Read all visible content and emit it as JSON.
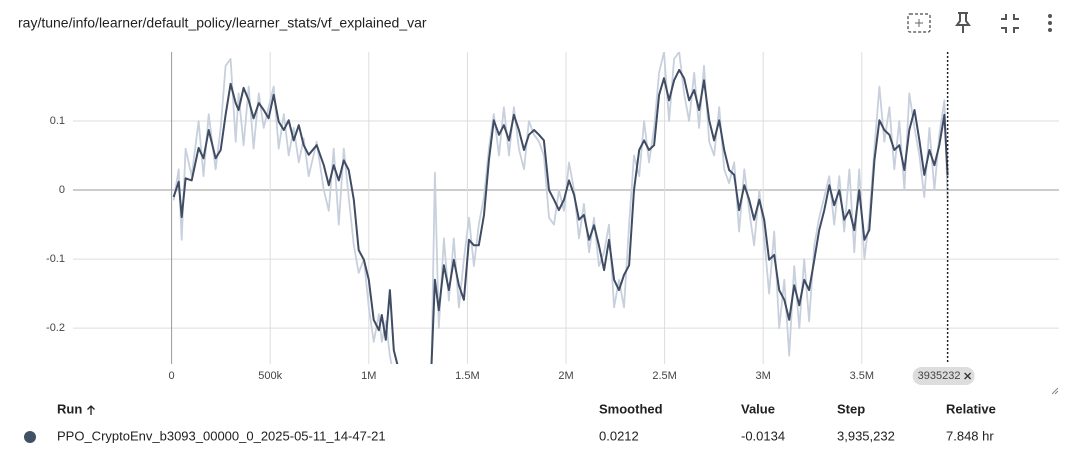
{
  "header": {
    "title": "ray/tune/info/learner/default_policy/learner_stats/vf_explained_var"
  },
  "chart_data": {
    "type": "line",
    "x": [
      10000,
      36000,
      51000,
      71000,
      102000,
      137000,
      162000,
      188000,
      223000,
      249000,
      274000,
      299000,
      325000,
      340000,
      365000,
      391000,
      416000,
      442000,
      467000,
      492000,
      518000,
      543000,
      569000,
      594000,
      619000,
      645000,
      670000,
      695000,
      736000,
      772000,
      797000,
      822000,
      848000,
      873000,
      898000,
      924000,
      949000,
      975000,
      1000000,
      1025000,
      1051000,
      1066000,
      1086000,
      1107000,
      1127000,
      1152000,
      1315000,
      1335000,
      1355000,
      1381000,
      1406000,
      1431000,
      1457000,
      1482000,
      1508000,
      1533000,
      1558000,
      1584000,
      1609000,
      1634000,
      1660000,
      1685000,
      1711000,
      1736000,
      1761000,
      1787000,
      1812000,
      1838000,
      1863000,
      1888000,
      1914000,
      1939000,
      1964000,
      1990000,
      2015000,
      2041000,
      2066000,
      2091000,
      2117000,
      2142000,
      2167000,
      2193000,
      2218000,
      2244000,
      2269000,
      2294000,
      2320000,
      2345000,
      2371000,
      2396000,
      2421000,
      2447000,
      2472000,
      2497000,
      2523000,
      2548000,
      2574000,
      2599000,
      2624000,
      2650000,
      2675000,
      2700000,
      2726000,
      2751000,
      2777000,
      2802000,
      2827000,
      2853000,
      2878000,
      2904000,
      2929000,
      2954000,
      2980000,
      3005000,
      3030000,
      3056000,
      3081000,
      3107000,
      3132000,
      3157000,
      3183000,
      3208000,
      3233000,
      3259000,
      3284000,
      3310000,
      3335000,
      3360000,
      3386000,
      3411000,
      3437000,
      3462000,
      3487000,
      3513000,
      3538000,
      3564000,
      3589000,
      3614000,
      3640000,
      3665000,
      3690000,
      3716000,
      3741000,
      3767000,
      3792000,
      3817000,
      3843000,
      3868000,
      3893000,
      3919000,
      3935232
    ],
    "series": [
      {
        "color": "#c8d0dd",
        "values": [
          -0.015,
          0.03,
          -0.072,
          0.06,
          0.02,
          0.1,
          0.02,
          0.11,
          0.03,
          0.09,
          0.18,
          0.19,
          0.07,
          0.14,
          0.065,
          0.15,
          0.06,
          0.14,
          0.09,
          0.12,
          0.15,
          0.06,
          0.11,
          0.05,
          0.09,
          0.04,
          0.075,
          0.02,
          0.07,
          0.0,
          -0.03,
          0.06,
          -0.05,
          0.06,
          -0.01,
          -0.08,
          -0.12,
          -0.1,
          -0.17,
          -0.22,
          -0.18,
          -0.22,
          -0.19,
          -0.24,
          -0.27,
          -0.3,
          -0.3,
          0.025,
          -0.2,
          -0.07,
          -0.16,
          -0.07,
          -0.17,
          -0.1,
          -0.04,
          -0.11,
          -0.05,
          -0.01,
          0.06,
          0.11,
          0.05,
          0.12,
          0.05,
          0.12,
          0.06,
          0.03,
          0.1,
          0.08,
          0.07,
          0.05,
          -0.04,
          -0.05,
          0.0,
          -0.03,
          0.04,
          0.0,
          -0.07,
          -0.02,
          -0.09,
          -0.04,
          -0.11,
          -0.09,
          -0.05,
          -0.17,
          -0.13,
          -0.17,
          -0.05,
          0.05,
          0.02,
          0.1,
          0.04,
          0.09,
          0.17,
          0.2,
          0.1,
          0.19,
          0.2,
          0.14,
          0.1,
          0.17,
          0.09,
          0.18,
          0.07,
          0.05,
          0.12,
          0.03,
          0.01,
          0.04,
          -0.06,
          0.03,
          -0.03,
          -0.08,
          0.0,
          -0.07,
          -0.15,
          -0.06,
          -0.2,
          -0.13,
          -0.24,
          -0.11,
          -0.2,
          -0.1,
          -0.19,
          -0.08,
          -0.04,
          -0.01,
          0.02,
          -0.05,
          0.02,
          -0.06,
          0.03,
          -0.09,
          0.03,
          -0.1,
          -0.04,
          0.06,
          0.15,
          0.07,
          0.12,
          0.03,
          0.1,
          0.0,
          0.14,
          0.09,
          0.05,
          -0.01,
          0.09,
          0.0,
          0.08,
          0.13,
          -0.0134
        ]
      },
      {
        "color": "#3f4c63",
        "values": [
          -0.01,
          0.012,
          -0.039,
          0.017,
          0.014,
          0.061,
          0.046,
          0.087,
          0.046,
          0.058,
          0.109,
          0.154,
          0.126,
          0.116,
          0.148,
          0.13,
          0.104,
          0.126,
          0.116,
          0.104,
          0.138,
          0.099,
          0.087,
          0.101,
          0.072,
          0.094,
          0.065,
          0.051,
          0.065,
          0.036,
          0.007,
          0.036,
          0.014,
          0.043,
          0.029,
          -0.014,
          -0.087,
          -0.101,
          -0.13,
          -0.188,
          -0.203,
          -0.181,
          -0.217,
          -0.145,
          -0.232,
          -0.261,
          -0.275,
          -0.13,
          -0.174,
          -0.109,
          -0.145,
          -0.101,
          -0.138,
          -0.159,
          -0.072,
          -0.08,
          -0.08,
          -0.036,
          0.043,
          0.101,
          0.08,
          0.094,
          0.072,
          0.109,
          0.087,
          0.058,
          0.08,
          0.087,
          0.08,
          0.072,
          0.0,
          -0.014,
          -0.029,
          -0.014,
          0.014,
          -0.007,
          -0.043,
          -0.036,
          -0.072,
          -0.051,
          -0.08,
          -0.116,
          -0.072,
          -0.13,
          -0.145,
          -0.123,
          -0.109,
          0.0,
          0.058,
          0.072,
          0.058,
          0.065,
          0.138,
          0.162,
          0.13,
          0.159,
          0.174,
          0.162,
          0.13,
          0.145,
          0.116,
          0.159,
          0.101,
          0.072,
          0.101,
          0.058,
          0.029,
          0.022,
          -0.029,
          0.007,
          -0.014,
          -0.043,
          -0.014,
          -0.043,
          -0.101,
          -0.094,
          -0.145,
          -0.159,
          -0.188,
          -0.138,
          -0.167,
          -0.13,
          -0.145,
          -0.101,
          -0.058,
          -0.029,
          0.007,
          -0.022,
          0.0,
          -0.043,
          -0.029,
          -0.058,
          0.0,
          -0.072,
          -0.058,
          0.043,
          0.101,
          0.087,
          0.08,
          0.058,
          0.065,
          0.029,
          0.087,
          0.116,
          0.072,
          0.022,
          0.058,
          0.036,
          0.065,
          0.109,
          0.0212
        ]
      }
    ],
    "xlim": [
      -500000,
      4500000
    ],
    "xticks": [
      0,
      {
        "value": 500000,
        "label": "500k"
      },
      {
        "value": 1000000,
        "label": "1M"
      },
      {
        "value": 1500000,
        "label": "1.5M"
      },
      {
        "value": 2000000,
        "label": "2M"
      },
      {
        "value": 2500000,
        "label": "2.5M"
      },
      {
        "value": 3000000,
        "label": "3M"
      },
      {
        "value": 3500000,
        "label": "3.5M"
      }
    ],
    "ylim": [
      -0.252,
      0.2
    ],
    "yticks": [
      -0.2,
      -0.1,
      0,
      0.1
    ],
    "grid": true,
    "cursor_step": 3935232
  },
  "table": {
    "columns": [
      "Run",
      "Smoothed",
      "Value",
      "Step",
      "Relative"
    ],
    "rows": [
      [
        "PPO_CryptoEnv_b3093_00000_0_2025-05-11_14-47-21",
        0.0212,
        -0.0134,
        "3,935,232",
        "7.848 hr"
      ]
    ]
  }
}
